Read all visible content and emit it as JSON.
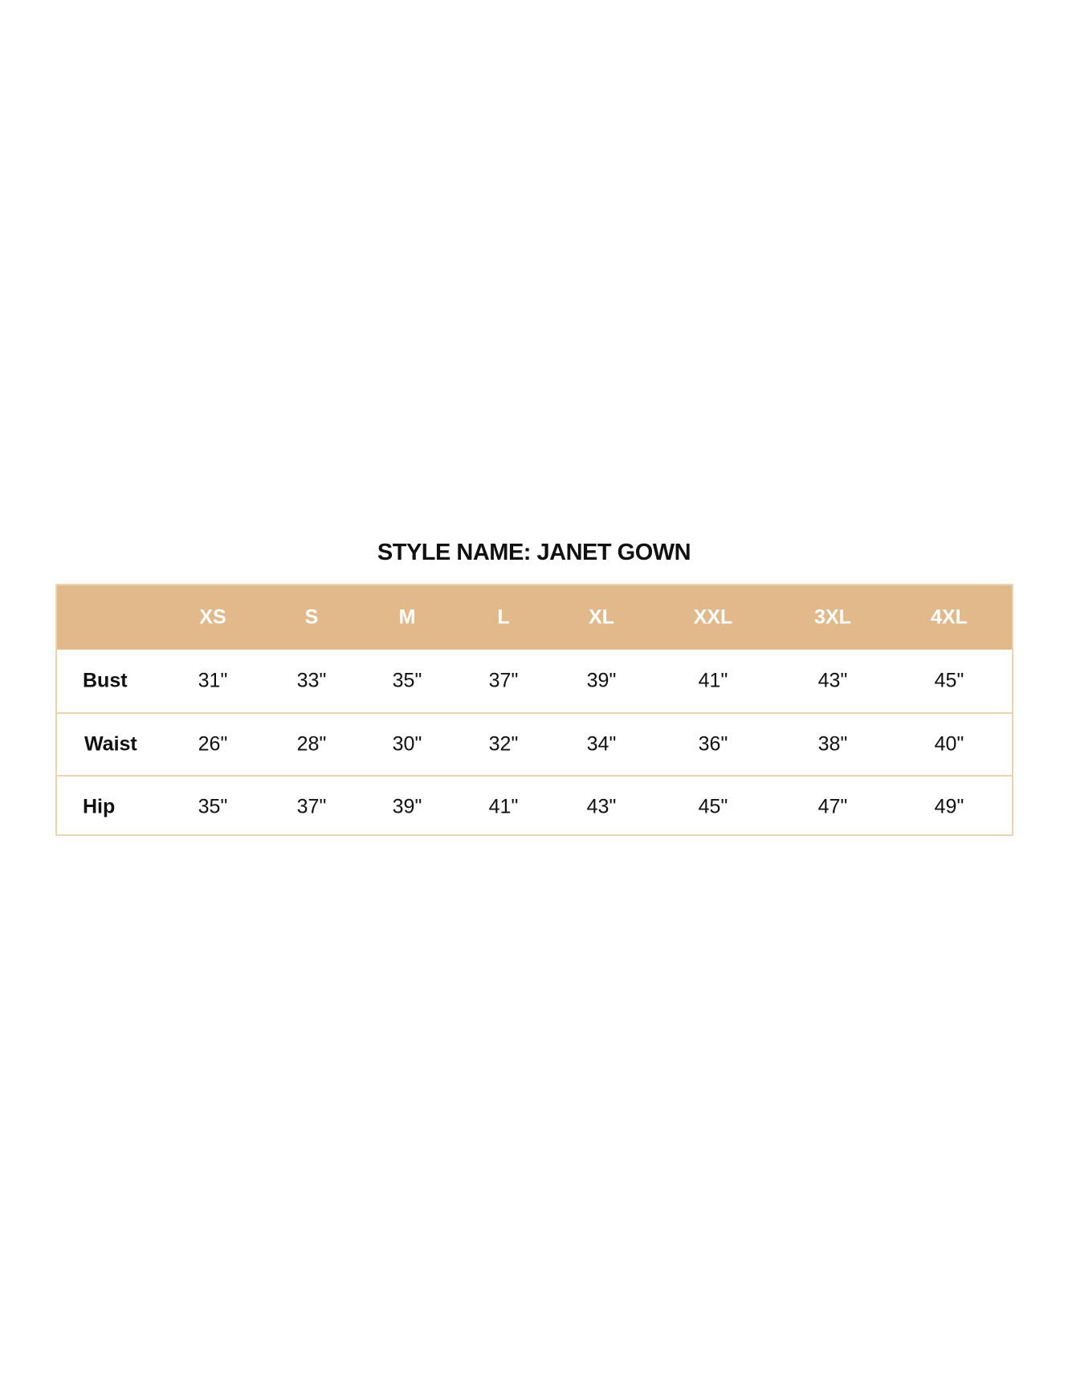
{
  "title": "STYLE NAME: JANET GOWN",
  "colors": {
    "header_bg": "#e2b98b",
    "border": "#efd2ae"
  },
  "table": {
    "columns": [
      "XS",
      "S",
      "M",
      "L",
      "XL",
      "XXL",
      "3XL",
      "4XL"
    ],
    "rows": [
      {
        "label": "Bust",
        "values": [
          "31\"",
          "33\"",
          "35\"",
          "37\"",
          "39\"",
          "41\"",
          "43\"",
          "45\""
        ]
      },
      {
        "label": "Waist",
        "values": [
          "26\"",
          "28\"",
          "30\"",
          "32\"",
          "34\"",
          "36\"",
          "38\"",
          "40\""
        ]
      },
      {
        "label": "Hip",
        "values": [
          "35\"",
          "37\"",
          "39\"",
          "41\"",
          "43\"",
          "45\"",
          "47\"",
          "49\""
        ]
      }
    ]
  }
}
